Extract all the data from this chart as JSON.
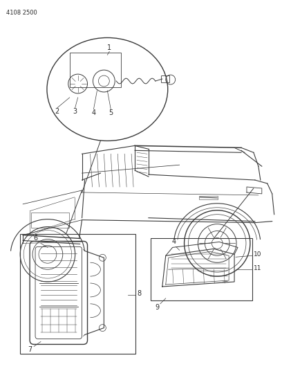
{
  "part_number": "4108 2500",
  "background_color": "#ffffff",
  "line_color": "#3a3a3a",
  "text_color": "#2a2a2a",
  "fig_width": 4.08,
  "fig_height": 5.33,
  "dpi": 100,
  "part_number_fontsize": 6.0,
  "label_fontsize": 7.0
}
